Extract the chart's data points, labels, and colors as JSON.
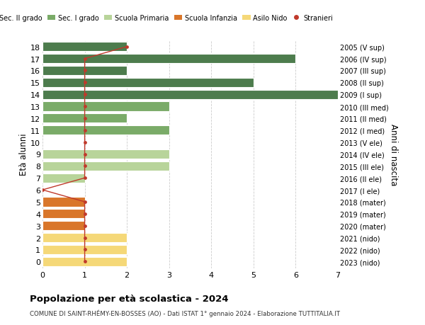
{
  "ages": [
    18,
    17,
    16,
    15,
    14,
    13,
    12,
    11,
    10,
    9,
    8,
    7,
    6,
    5,
    4,
    3,
    2,
    1,
    0
  ],
  "right_labels": [
    "2005 (V sup)",
    "2006 (IV sup)",
    "2007 (III sup)",
    "2008 (II sup)",
    "2009 (I sup)",
    "2010 (III med)",
    "2011 (II med)",
    "2012 (I med)",
    "2013 (V ele)",
    "2014 (IV ele)",
    "2015 (III ele)",
    "2016 (II ele)",
    "2017 (I ele)",
    "2018 (mater)",
    "2019 (mater)",
    "2020 (mater)",
    "2021 (nido)",
    "2022 (nido)",
    "2023 (nido)"
  ],
  "bar_values": [
    2,
    6,
    2,
    5,
    7,
    3,
    2,
    3,
    0,
    3,
    3,
    1,
    0,
    1,
    1,
    1,
    2,
    2,
    2
  ],
  "bar_colors": [
    "#4d7c4d",
    "#4d7c4d",
    "#4d7c4d",
    "#4d7c4d",
    "#4d7c4d",
    "#7aab68",
    "#7aab68",
    "#7aab68",
    "#b8d49a",
    "#b8d49a",
    "#b8d49a",
    "#b8d49a",
    "#b8d49a",
    "#d9762a",
    "#d9762a",
    "#d9762a",
    "#f5d878",
    "#f5d878",
    "#f5d878"
  ],
  "stranieri_values": [
    2,
    1,
    1,
    1,
    1,
    1,
    1,
    1,
    1,
    1,
    1,
    1,
    0,
    1,
    1,
    1,
    1,
    1,
    1
  ],
  "stranieri_color": "#c0392b",
  "legend_items": [
    {
      "label": "Sec. II grado",
      "color": "#4d7c4d"
    },
    {
      "label": "Sec. I grado",
      "color": "#7aab68"
    },
    {
      "label": "Scuola Primaria",
      "color": "#b8d49a"
    },
    {
      "label": "Scuola Infanzia",
      "color": "#d9762a"
    },
    {
      "label": "Asilo Nido",
      "color": "#f5d878"
    },
    {
      "label": "Stranieri",
      "color": "#c0392b"
    }
  ],
  "ylabel_left": "Età alunni",
  "ylabel_right": "Anni di nascita",
  "title": "Popolazione per età scolastica - 2024",
  "subtitle": "COMUNE DI SAINT-RHÉMY-EN-BOSSES (AO) - Dati ISTAT 1° gennaio 2024 - Elaborazione TUTTITALIA.IT",
  "xlim": [
    0,
    7
  ],
  "xticks": [
    0,
    1,
    2,
    3,
    4,
    5,
    6,
    7
  ],
  "ylim_min": -0.55,
  "ylim_max": 18.55,
  "background_color": "#ffffff",
  "grid_color": "#cccccc",
  "bar_height": 0.78
}
